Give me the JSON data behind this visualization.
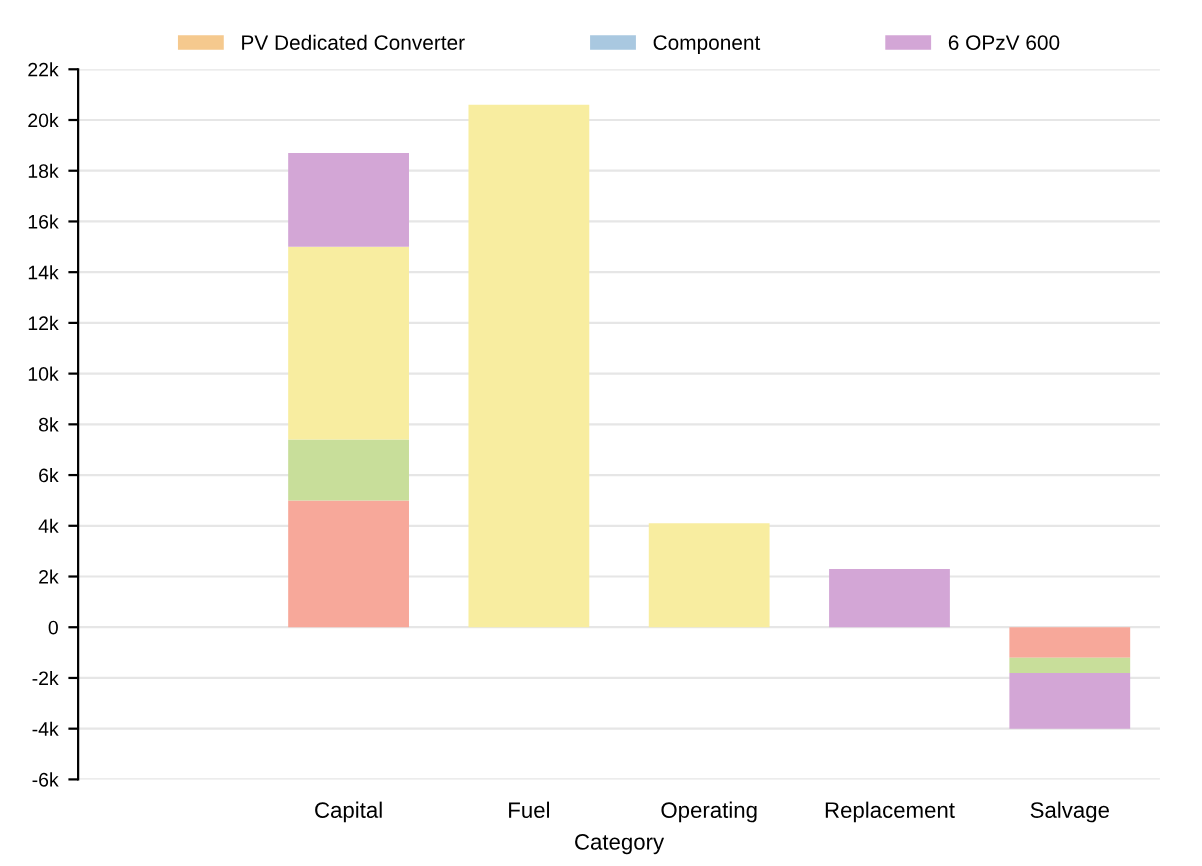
{
  "chart_data": {
    "type": "bar",
    "stacked": true,
    "xlabel": "Category",
    "categories": [
      null,
      "Capital",
      "Fuel",
      "Operating",
      "Replacement",
      "Salvage"
    ],
    "series": [
      {
        "name": "PV Dedicated Converter",
        "color": "#f5c98e",
        "values": [
          null,
          null,
          null,
          null,
          null,
          null
        ]
      },
      {
        "color": "#f7a89a",
        "values": [
          null,
          5000,
          null,
          null,
          null,
          -1200
        ]
      },
      {
        "name": "Component",
        "color": "#a9c8e0",
        "values": [
          null,
          null,
          null,
          null,
          null,
          null
        ]
      },
      {
        "color": "#c8de9a",
        "values": [
          null,
          2400,
          null,
          null,
          null,
          -600
        ]
      },
      {
        "color": "#f8eda0",
        "values": [
          null,
          7600,
          20600,
          4100,
          null,
          null
        ]
      },
      {
        "name": "6 OPzV 600",
        "color": "#d3a6d6",
        "values": [
          null,
          3700,
          null,
          null,
          2300,
          -2200
        ]
      }
    ],
    "ylim": [
      -6000,
      22000
    ],
    "yticks": [
      {
        "value": -6000,
        "label": "-6k"
      },
      {
        "value": -4000,
        "label": "-4k"
      },
      {
        "value": -2000,
        "label": "-2k"
      },
      0,
      {
        "value": 2000,
        "label": "2k"
      },
      {
        "value": 4000,
        "label": "4k"
      },
      {
        "value": 6000,
        "label": "6k"
      },
      {
        "value": 8000,
        "label": "8k"
      },
      {
        "value": 10000,
        "label": "10k"
      },
      {
        "value": 12000,
        "label": "12k"
      },
      {
        "value": 14000,
        "label": "14k"
      },
      {
        "value": 16000,
        "label": "16k"
      },
      {
        "value": 18000,
        "label": "18k"
      },
      {
        "value": 20000,
        "label": "20k"
      },
      {
        "value": 22000,
        "label": "22k"
      }
    ],
    "grid": "y",
    "legend": "top"
  }
}
